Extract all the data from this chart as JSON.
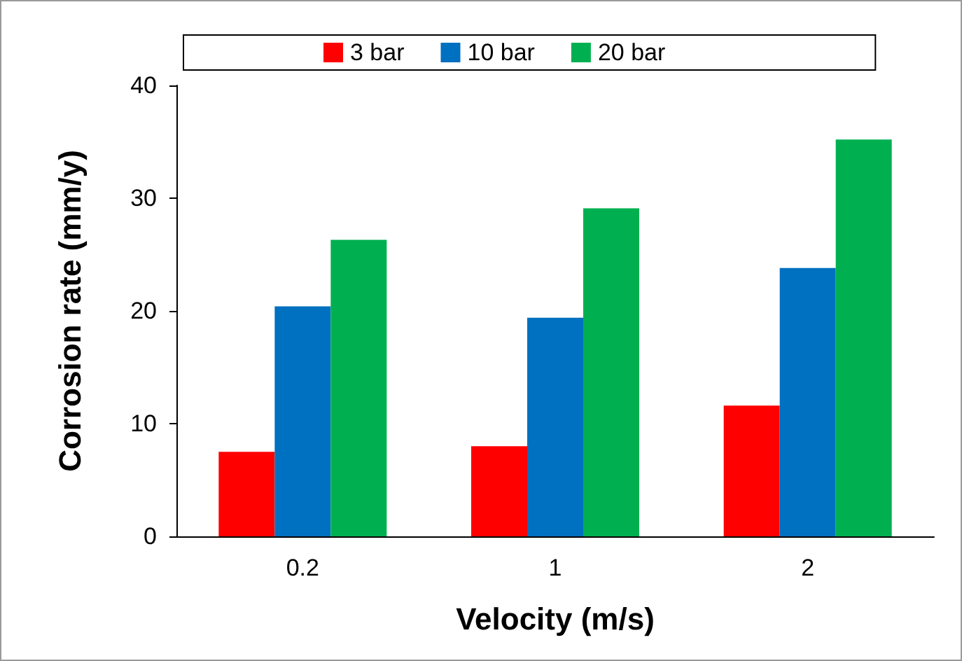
{
  "chart_data": {
    "type": "bar",
    "xlabel": "Velocity (m/s)",
    "ylabel": "Corrosion rate (mm/y)",
    "categories": [
      "0.2",
      "1",
      "2"
    ],
    "series": [
      {
        "name": "3 bar",
        "color": "#ff0000",
        "values": [
          7.5,
          8.0,
          11.6
        ]
      },
      {
        "name": "10 bar",
        "color": "#0070c0",
        "values": [
          20.4,
          19.4,
          23.8
        ]
      },
      {
        "name": "20 bar",
        "color": "#00b050",
        "values": [
          26.3,
          29.1,
          35.2
        ]
      }
    ],
    "ylim": [
      0,
      40
    ],
    "yticks": [
      0,
      10,
      20,
      30,
      40
    ],
    "grid": false,
    "legend": "top"
  }
}
